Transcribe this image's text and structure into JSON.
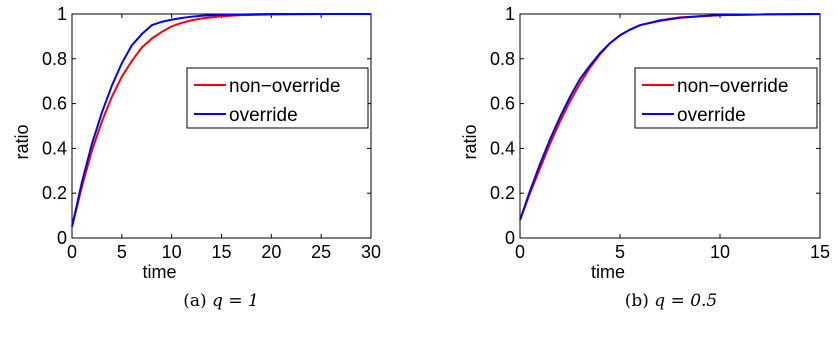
{
  "chart_data": [
    {
      "type": "line",
      "xlabel": "time",
      "ylabel": "ratio",
      "xlim": [
        0,
        30
      ],
      "ylim": [
        0,
        1
      ],
      "xticks": [
        0,
        5,
        10,
        15,
        20,
        25,
        30
      ],
      "yticks": [
        0,
        0.2,
        0.4,
        0.6,
        0.8,
        1
      ],
      "xtick_labels": [
        "0",
        "5",
        "10",
        "15",
        "20",
        "25",
        "30"
      ],
      "ytick_labels": [
        "0",
        "0.2",
        "0.4",
        "0.6",
        "0.8",
        "1"
      ],
      "grid": false,
      "legend_position": "center-right",
      "caption_label": "(a)",
      "caption_math": "q = 1",
      "series": [
        {
          "name": "non−override",
          "color": "#ff0000",
          "x": [
            0,
            1,
            2,
            3,
            4,
            5,
            6,
            7,
            8,
            9,
            10,
            11,
            12,
            13,
            15,
            17,
            20,
            25,
            30
          ],
          "y": [
            0.05,
            0.23,
            0.39,
            0.52,
            0.63,
            0.72,
            0.79,
            0.85,
            0.89,
            0.92,
            0.945,
            0.96,
            0.972,
            0.98,
            0.99,
            0.995,
            0.998,
            1.0,
            1.0
          ]
        },
        {
          "name": "override",
          "color": "#0000ff",
          "x": [
            0,
            1,
            2,
            3,
            4,
            5,
            6,
            7,
            8,
            9,
            10,
            11,
            12,
            13,
            15,
            17,
            20,
            25,
            30
          ],
          "y": [
            0.05,
            0.25,
            0.42,
            0.56,
            0.68,
            0.78,
            0.86,
            0.91,
            0.95,
            0.965,
            0.975,
            0.982,
            0.988,
            0.992,
            0.996,
            0.998,
            1.0,
            1.0,
            1.0
          ]
        }
      ]
    },
    {
      "type": "line",
      "xlabel": "time",
      "ylabel": "ratio",
      "xlim": [
        0,
        15
      ],
      "ylim": [
        0,
        1
      ],
      "xticks": [
        0,
        5,
        10,
        15
      ],
      "yticks": [
        0,
        0.2,
        0.4,
        0.6,
        0.8,
        1
      ],
      "xtick_labels": [
        "0",
        "5",
        "10",
        "15"
      ],
      "ytick_labels": [
        "0",
        "0.2",
        "0.4",
        "0.6",
        "0.8",
        "1"
      ],
      "grid": false,
      "legend_position": "center-right",
      "caption_label": "(b)",
      "caption_math": "q = 0.5",
      "series": [
        {
          "name": "non−override",
          "color": "#ff0000",
          "x": [
            0,
            0.5,
            1,
            1.5,
            2,
            2.5,
            3,
            3.5,
            4,
            4.5,
            5,
            5.5,
            6,
            7,
            8,
            9,
            10,
            12,
            15
          ],
          "y": [
            0.08,
            0.2,
            0.31,
            0.42,
            0.52,
            0.61,
            0.69,
            0.76,
            0.82,
            0.87,
            0.905,
            0.93,
            0.95,
            0.972,
            0.985,
            0.99,
            0.995,
            0.998,
            1.0
          ]
        },
        {
          "name": "override",
          "color": "#0000ff",
          "x": [
            0,
            0.5,
            1,
            1.5,
            2,
            2.5,
            3,
            3.5,
            4,
            4.5,
            5,
            5.5,
            6,
            7,
            8,
            9,
            10,
            12,
            15
          ],
          "y": [
            0.08,
            0.21,
            0.33,
            0.44,
            0.54,
            0.63,
            0.71,
            0.77,
            0.825,
            0.87,
            0.905,
            0.93,
            0.95,
            0.97,
            0.983,
            0.99,
            0.995,
            0.998,
            1.0
          ]
        }
      ]
    }
  ]
}
